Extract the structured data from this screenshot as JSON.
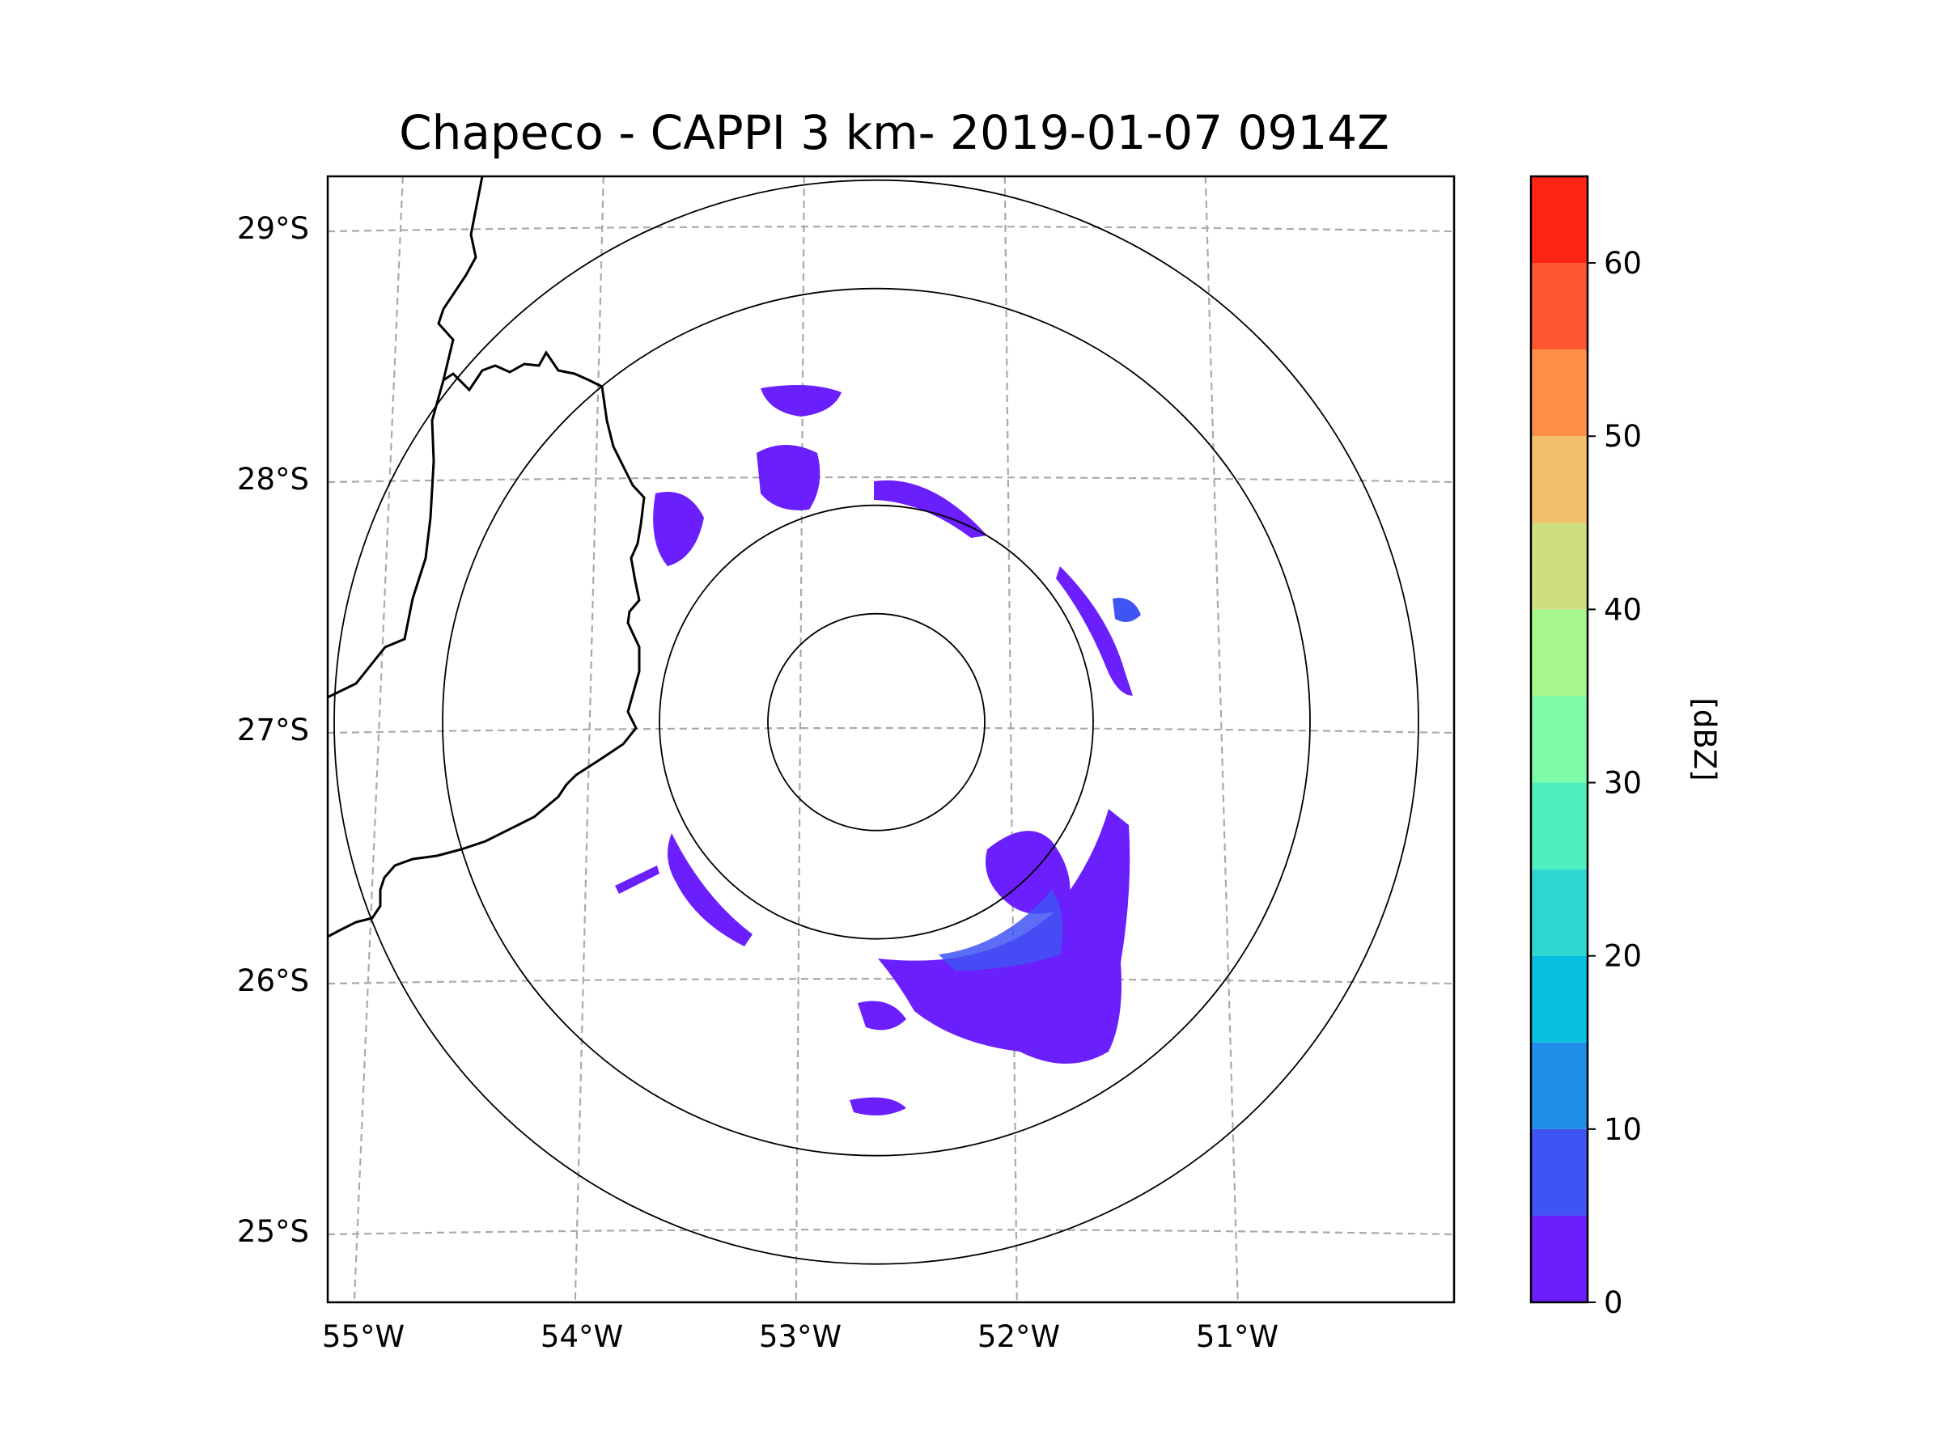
{
  "title": "Chapeco - CAPPI 3 km- 2019-01-07 0914Z",
  "map": {
    "lon_labels": [
      "55°W",
      "54°W",
      "53°W",
      "52°W",
      "51°W"
    ],
    "lat_labels": [
      "25°S",
      "26°S",
      "27°S",
      "28°S",
      "29°S"
    ],
    "lon_values": [
      -55,
      -54,
      -53,
      -52,
      -51
    ],
    "lat_values": [
      -25,
      -26,
      -27,
      -28,
      -29
    ],
    "range_rings_km": [
      50,
      100,
      200,
      250
    ],
    "radar_center": {
      "lon": -52.6,
      "lat": -27.03
    },
    "gridline_style": "dashed gray"
  },
  "colorbar": {
    "label": "[dBZ]",
    "ticks": [
      "0",
      "10",
      "20",
      "30",
      "40",
      "50",
      "60"
    ],
    "tick_values": [
      0,
      10,
      20,
      30,
      40,
      50,
      60
    ],
    "levels": [
      0,
      5,
      10,
      15,
      20,
      25,
      30,
      35,
      40,
      45,
      50,
      55,
      60,
      65
    ],
    "colors": [
      "#6a1ffc",
      "#4054f4",
      "#1f8ee8",
      "#08bfe0",
      "#2ed7d0",
      "#4ef0c0",
      "#7efba8",
      "#a8f78c",
      "#cfde80",
      "#f2c06a",
      "#ff8f48",
      "#ff5530",
      "#ff2414"
    ]
  },
  "echo_colors": {
    "low": "#6a1ffc",
    "mid": "#4054f4",
    "high": "#1f8ee8"
  }
}
